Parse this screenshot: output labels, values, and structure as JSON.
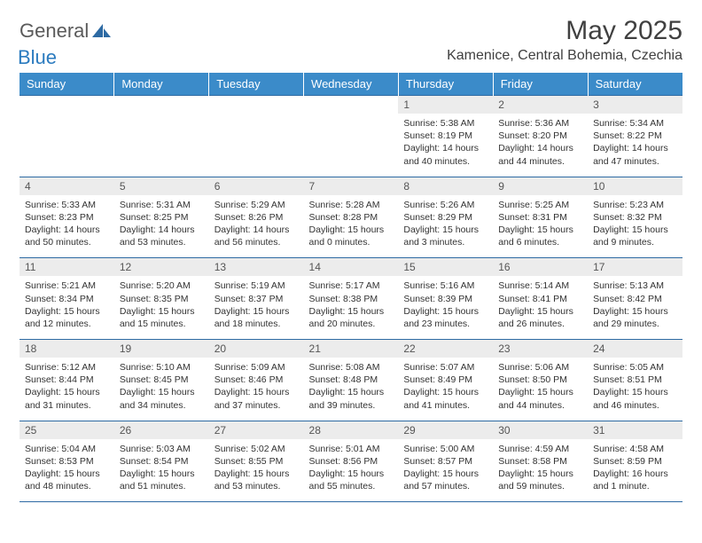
{
  "brand": {
    "part1": "General",
    "part2": "Blue"
  },
  "title": "May 2025",
  "location": "Kamenice, Central Bohemia, Czechia",
  "colors": {
    "header_bg": "#3b8bc9",
    "header_text": "#ffffff",
    "border": "#2d6aa3",
    "daynum_bg": "#ececec",
    "brand_gray": "#5a5a5a",
    "brand_blue": "#2b7bbf"
  },
  "weekdays": [
    "Sunday",
    "Monday",
    "Tuesday",
    "Wednesday",
    "Thursday",
    "Friday",
    "Saturday"
  ],
  "weeks": [
    [
      {
        "n": "",
        "sr": "",
        "ss": "",
        "dl1": "",
        "dl2": ""
      },
      {
        "n": "",
        "sr": "",
        "ss": "",
        "dl1": "",
        "dl2": ""
      },
      {
        "n": "",
        "sr": "",
        "ss": "",
        "dl1": "",
        "dl2": ""
      },
      {
        "n": "",
        "sr": "",
        "ss": "",
        "dl1": "",
        "dl2": ""
      },
      {
        "n": "1",
        "sr": "Sunrise: 5:38 AM",
        "ss": "Sunset: 8:19 PM",
        "dl1": "Daylight: 14 hours",
        "dl2": "and 40 minutes."
      },
      {
        "n": "2",
        "sr": "Sunrise: 5:36 AM",
        "ss": "Sunset: 8:20 PM",
        "dl1": "Daylight: 14 hours",
        "dl2": "and 44 minutes."
      },
      {
        "n": "3",
        "sr": "Sunrise: 5:34 AM",
        "ss": "Sunset: 8:22 PM",
        "dl1": "Daylight: 14 hours",
        "dl2": "and 47 minutes."
      }
    ],
    [
      {
        "n": "4",
        "sr": "Sunrise: 5:33 AM",
        "ss": "Sunset: 8:23 PM",
        "dl1": "Daylight: 14 hours",
        "dl2": "and 50 minutes."
      },
      {
        "n": "5",
        "sr": "Sunrise: 5:31 AM",
        "ss": "Sunset: 8:25 PM",
        "dl1": "Daylight: 14 hours",
        "dl2": "and 53 minutes."
      },
      {
        "n": "6",
        "sr": "Sunrise: 5:29 AM",
        "ss": "Sunset: 8:26 PM",
        "dl1": "Daylight: 14 hours",
        "dl2": "and 56 minutes."
      },
      {
        "n": "7",
        "sr": "Sunrise: 5:28 AM",
        "ss": "Sunset: 8:28 PM",
        "dl1": "Daylight: 15 hours",
        "dl2": "and 0 minutes."
      },
      {
        "n": "8",
        "sr": "Sunrise: 5:26 AM",
        "ss": "Sunset: 8:29 PM",
        "dl1": "Daylight: 15 hours",
        "dl2": "and 3 minutes."
      },
      {
        "n": "9",
        "sr": "Sunrise: 5:25 AM",
        "ss": "Sunset: 8:31 PM",
        "dl1": "Daylight: 15 hours",
        "dl2": "and 6 minutes."
      },
      {
        "n": "10",
        "sr": "Sunrise: 5:23 AM",
        "ss": "Sunset: 8:32 PM",
        "dl1": "Daylight: 15 hours",
        "dl2": "and 9 minutes."
      }
    ],
    [
      {
        "n": "11",
        "sr": "Sunrise: 5:21 AM",
        "ss": "Sunset: 8:34 PM",
        "dl1": "Daylight: 15 hours",
        "dl2": "and 12 minutes."
      },
      {
        "n": "12",
        "sr": "Sunrise: 5:20 AM",
        "ss": "Sunset: 8:35 PM",
        "dl1": "Daylight: 15 hours",
        "dl2": "and 15 minutes."
      },
      {
        "n": "13",
        "sr": "Sunrise: 5:19 AM",
        "ss": "Sunset: 8:37 PM",
        "dl1": "Daylight: 15 hours",
        "dl2": "and 18 minutes."
      },
      {
        "n": "14",
        "sr": "Sunrise: 5:17 AM",
        "ss": "Sunset: 8:38 PM",
        "dl1": "Daylight: 15 hours",
        "dl2": "and 20 minutes."
      },
      {
        "n": "15",
        "sr": "Sunrise: 5:16 AM",
        "ss": "Sunset: 8:39 PM",
        "dl1": "Daylight: 15 hours",
        "dl2": "and 23 minutes."
      },
      {
        "n": "16",
        "sr": "Sunrise: 5:14 AM",
        "ss": "Sunset: 8:41 PM",
        "dl1": "Daylight: 15 hours",
        "dl2": "and 26 minutes."
      },
      {
        "n": "17",
        "sr": "Sunrise: 5:13 AM",
        "ss": "Sunset: 8:42 PM",
        "dl1": "Daylight: 15 hours",
        "dl2": "and 29 minutes."
      }
    ],
    [
      {
        "n": "18",
        "sr": "Sunrise: 5:12 AM",
        "ss": "Sunset: 8:44 PM",
        "dl1": "Daylight: 15 hours",
        "dl2": "and 31 minutes."
      },
      {
        "n": "19",
        "sr": "Sunrise: 5:10 AM",
        "ss": "Sunset: 8:45 PM",
        "dl1": "Daylight: 15 hours",
        "dl2": "and 34 minutes."
      },
      {
        "n": "20",
        "sr": "Sunrise: 5:09 AM",
        "ss": "Sunset: 8:46 PM",
        "dl1": "Daylight: 15 hours",
        "dl2": "and 37 minutes."
      },
      {
        "n": "21",
        "sr": "Sunrise: 5:08 AM",
        "ss": "Sunset: 8:48 PM",
        "dl1": "Daylight: 15 hours",
        "dl2": "and 39 minutes."
      },
      {
        "n": "22",
        "sr": "Sunrise: 5:07 AM",
        "ss": "Sunset: 8:49 PM",
        "dl1": "Daylight: 15 hours",
        "dl2": "and 41 minutes."
      },
      {
        "n": "23",
        "sr": "Sunrise: 5:06 AM",
        "ss": "Sunset: 8:50 PM",
        "dl1": "Daylight: 15 hours",
        "dl2": "and 44 minutes."
      },
      {
        "n": "24",
        "sr": "Sunrise: 5:05 AM",
        "ss": "Sunset: 8:51 PM",
        "dl1": "Daylight: 15 hours",
        "dl2": "and 46 minutes."
      }
    ],
    [
      {
        "n": "25",
        "sr": "Sunrise: 5:04 AM",
        "ss": "Sunset: 8:53 PM",
        "dl1": "Daylight: 15 hours",
        "dl2": "and 48 minutes."
      },
      {
        "n": "26",
        "sr": "Sunrise: 5:03 AM",
        "ss": "Sunset: 8:54 PM",
        "dl1": "Daylight: 15 hours",
        "dl2": "and 51 minutes."
      },
      {
        "n": "27",
        "sr": "Sunrise: 5:02 AM",
        "ss": "Sunset: 8:55 PM",
        "dl1": "Daylight: 15 hours",
        "dl2": "and 53 minutes."
      },
      {
        "n": "28",
        "sr": "Sunrise: 5:01 AM",
        "ss": "Sunset: 8:56 PM",
        "dl1": "Daylight: 15 hours",
        "dl2": "and 55 minutes."
      },
      {
        "n": "29",
        "sr": "Sunrise: 5:00 AM",
        "ss": "Sunset: 8:57 PM",
        "dl1": "Daylight: 15 hours",
        "dl2": "and 57 minutes."
      },
      {
        "n": "30",
        "sr": "Sunrise: 4:59 AM",
        "ss": "Sunset: 8:58 PM",
        "dl1": "Daylight: 15 hours",
        "dl2": "and 59 minutes."
      },
      {
        "n": "31",
        "sr": "Sunrise: 4:58 AM",
        "ss": "Sunset: 8:59 PM",
        "dl1": "Daylight: 16 hours",
        "dl2": "and 1 minute."
      }
    ]
  ]
}
